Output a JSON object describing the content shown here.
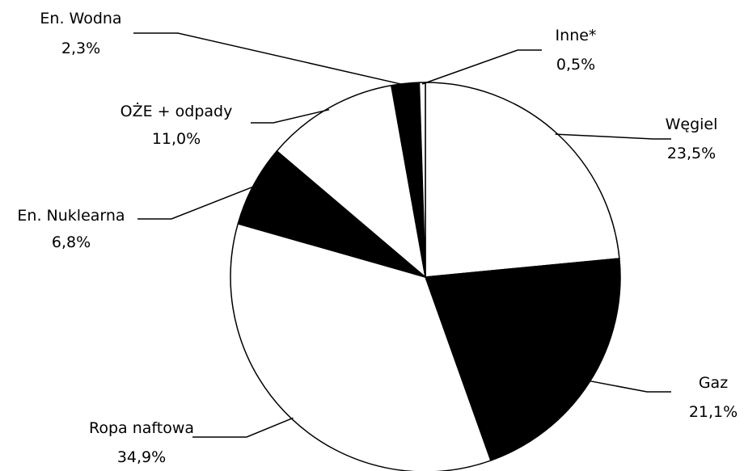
{
  "chart_data": {
    "type": "pie",
    "title": "",
    "slices": [
      {
        "label": "Węgiel",
        "value": 23.5,
        "value_label": "23,5%",
        "fill": "#ffffff"
      },
      {
        "label": "Gaz",
        "value": 21.1,
        "value_label": "21,1%",
        "fill": "#000000"
      },
      {
        "label": "Ropa naftowa",
        "value": 34.9,
        "value_label": "34,9%",
        "fill": "#ffffff"
      },
      {
        "label": "En. Nuklearna",
        "value": 6.8,
        "value_label": "6,8%",
        "fill": "#000000"
      },
      {
        "label": "OŻE + odpady",
        "value": 11.0,
        "value_label": "11,0%",
        "fill": "#ffffff"
      },
      {
        "label": "En. Wodna",
        "value": 2.3,
        "value_label": "2,3%",
        "fill": "#000000"
      },
      {
        "label": "Inne*",
        "value": 0.5,
        "value_label": "0,5%",
        "fill": "#ffffff"
      }
    ],
    "start_angle_deg": 0,
    "direction": "clockwise",
    "data_labels": "category-and-percent",
    "leader_lines": true
  }
}
